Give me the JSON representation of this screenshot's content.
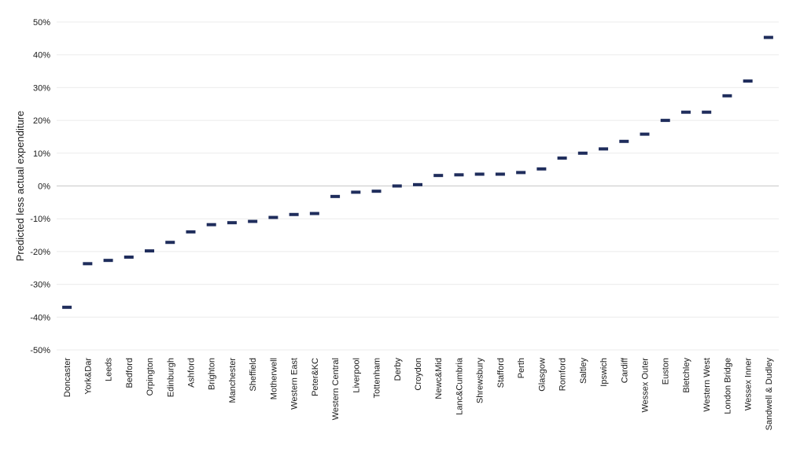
{
  "chart_data": {
    "type": "scatter",
    "marker": "dash",
    "color": "#1f2d5c",
    "ylabel": "Predicted less actual expenditure",
    "xlabel": "",
    "title": "",
    "ylim": [
      -50,
      50
    ],
    "ytick_step": 10,
    "ytick_suffix": "%",
    "grid": true,
    "categories": [
      "Doncaster",
      "York&Dar",
      "Leeds",
      "Bedford",
      "Orpington",
      "Edinburgh",
      "Ashford",
      "Brighton",
      "Manchester",
      "Sheffield",
      "Motherwell",
      "Western East",
      "Peter&KC",
      "Western Central",
      "Liverpool",
      "Tottenham",
      "Derby",
      "Croydon",
      "Newc&Mid",
      "Lanc&Cumbria",
      "Shrewsbury",
      "Stafford",
      "Perth",
      "Glasgow",
      "Romford",
      "Saltley",
      "Ipswich",
      "Cardiff",
      "Wessex Outer",
      "Euston",
      "Bletchley",
      "Western West",
      "London Bridge",
      "Wessex Inner",
      "Sandwell & Dudley"
    ],
    "values": [
      -37,
      -23.7,
      -22.7,
      -21.7,
      -19.8,
      -17.2,
      -14,
      -11.8,
      -11.2,
      -10.8,
      -9.6,
      -8.7,
      -8.4,
      -3.2,
      -1.9,
      -1.6,
      0,
      0.4,
      3.2,
      3.4,
      3.6,
      3.6,
      4.1,
      5.2,
      8.5,
      10,
      11.3,
      13.6,
      15.8,
      20,
      22.5,
      22.5,
      27.5,
      32,
      45.3
    ]
  }
}
